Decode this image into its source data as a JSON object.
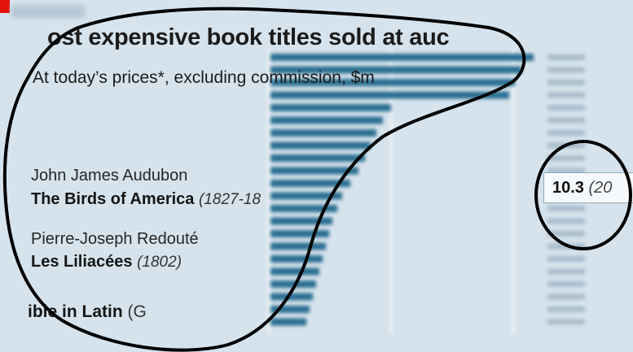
{
  "chart_data": {
    "type": "bar",
    "orientation": "horizontal",
    "title": "ost expensive book titles sold at auc",
    "subtitle": "At today’s prices*, excluding commission, $m",
    "categories": [
      {
        "author": "John James Audubon",
        "title": "The Birds of America",
        "years": "(1827-18"
      },
      {
        "author": "Pierre-Joseph Redouté",
        "title": "Les Liliacées",
        "years": "(1802)"
      },
      {
        "author": "",
        "title": "ible in Latin",
        "tail": "(G"
      }
    ],
    "highlight": {
      "value": "10.3",
      "year": "(20"
    },
    "grid": true
  },
  "colors": {
    "background": "#d6e3ec",
    "bar": "#2b6f91",
    "accent_tag": "#e3120b",
    "outline": "#000000"
  }
}
